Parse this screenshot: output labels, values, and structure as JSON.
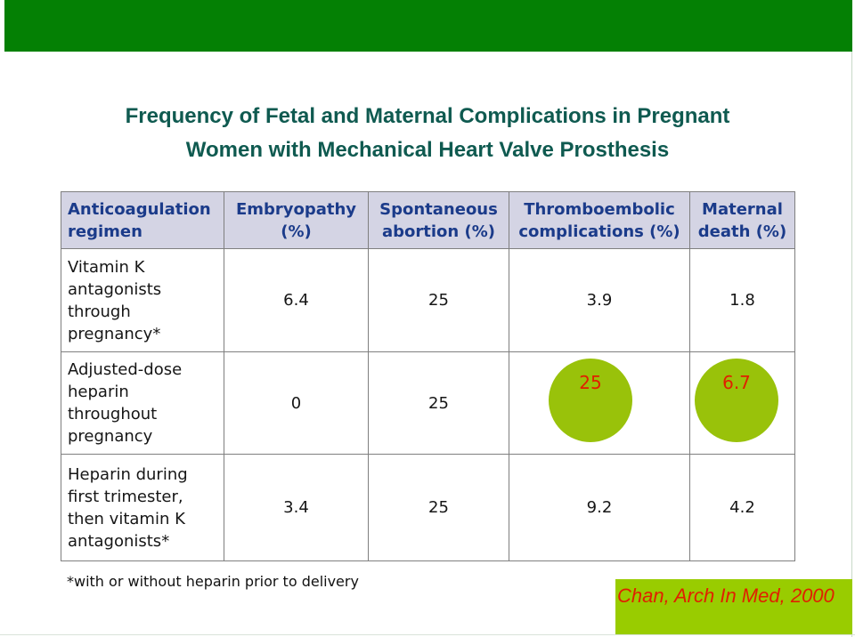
{
  "title": {
    "line1": "Frequency of Fetal and Maternal Complications in Pregnant",
    "line2": "Women with Mechanical Heart Valve Prosthesis"
  },
  "table": {
    "headers": [
      [
        "Anticoagulation",
        "regimen"
      ],
      [
        "Embryopathy",
        "(%)"
      ],
      [
        "Spontaneous",
        "abortion (%)"
      ],
      [
        "Thromboembolic",
        "complications (%)"
      ],
      [
        "Maternal",
        "death (%)"
      ]
    ],
    "rows": [
      {
        "regimen": [
          "Vitamin K",
          "antagonists",
          "through",
          "pregnancy*"
        ],
        "embryopathy": "6.4",
        "abortion": "25",
        "thromboembolic": "3.9",
        "maternal_death": "1.8"
      },
      {
        "regimen": [
          "Adjusted-dose",
          "heparin",
          "throughout",
          "pregnancy"
        ],
        "embryopathy": "0",
        "abortion": "25",
        "thromboembolic": "25",
        "maternal_death": "6.7"
      },
      {
        "regimen": [
          "Heparin during",
          "first trimester,",
          "then vitamin K",
          "antagonists*"
        ],
        "embryopathy": "3.4",
        "abortion": "25",
        "thromboembolic": "9.2",
        "maternal_death": "4.2"
      }
    ]
  },
  "footnote": "*with or without heparin prior to delivery",
  "citation": "Chan, Arch In Med, 2000",
  "colors": {
    "top_bar": "#048004",
    "title": "#0f5a50",
    "header_bg": "#d4d4e4",
    "header_text": "#1b3b8a",
    "highlight_circle": "#99c20a",
    "highlight_text": "#e02000",
    "citation_bg": "#99cc00"
  }
}
